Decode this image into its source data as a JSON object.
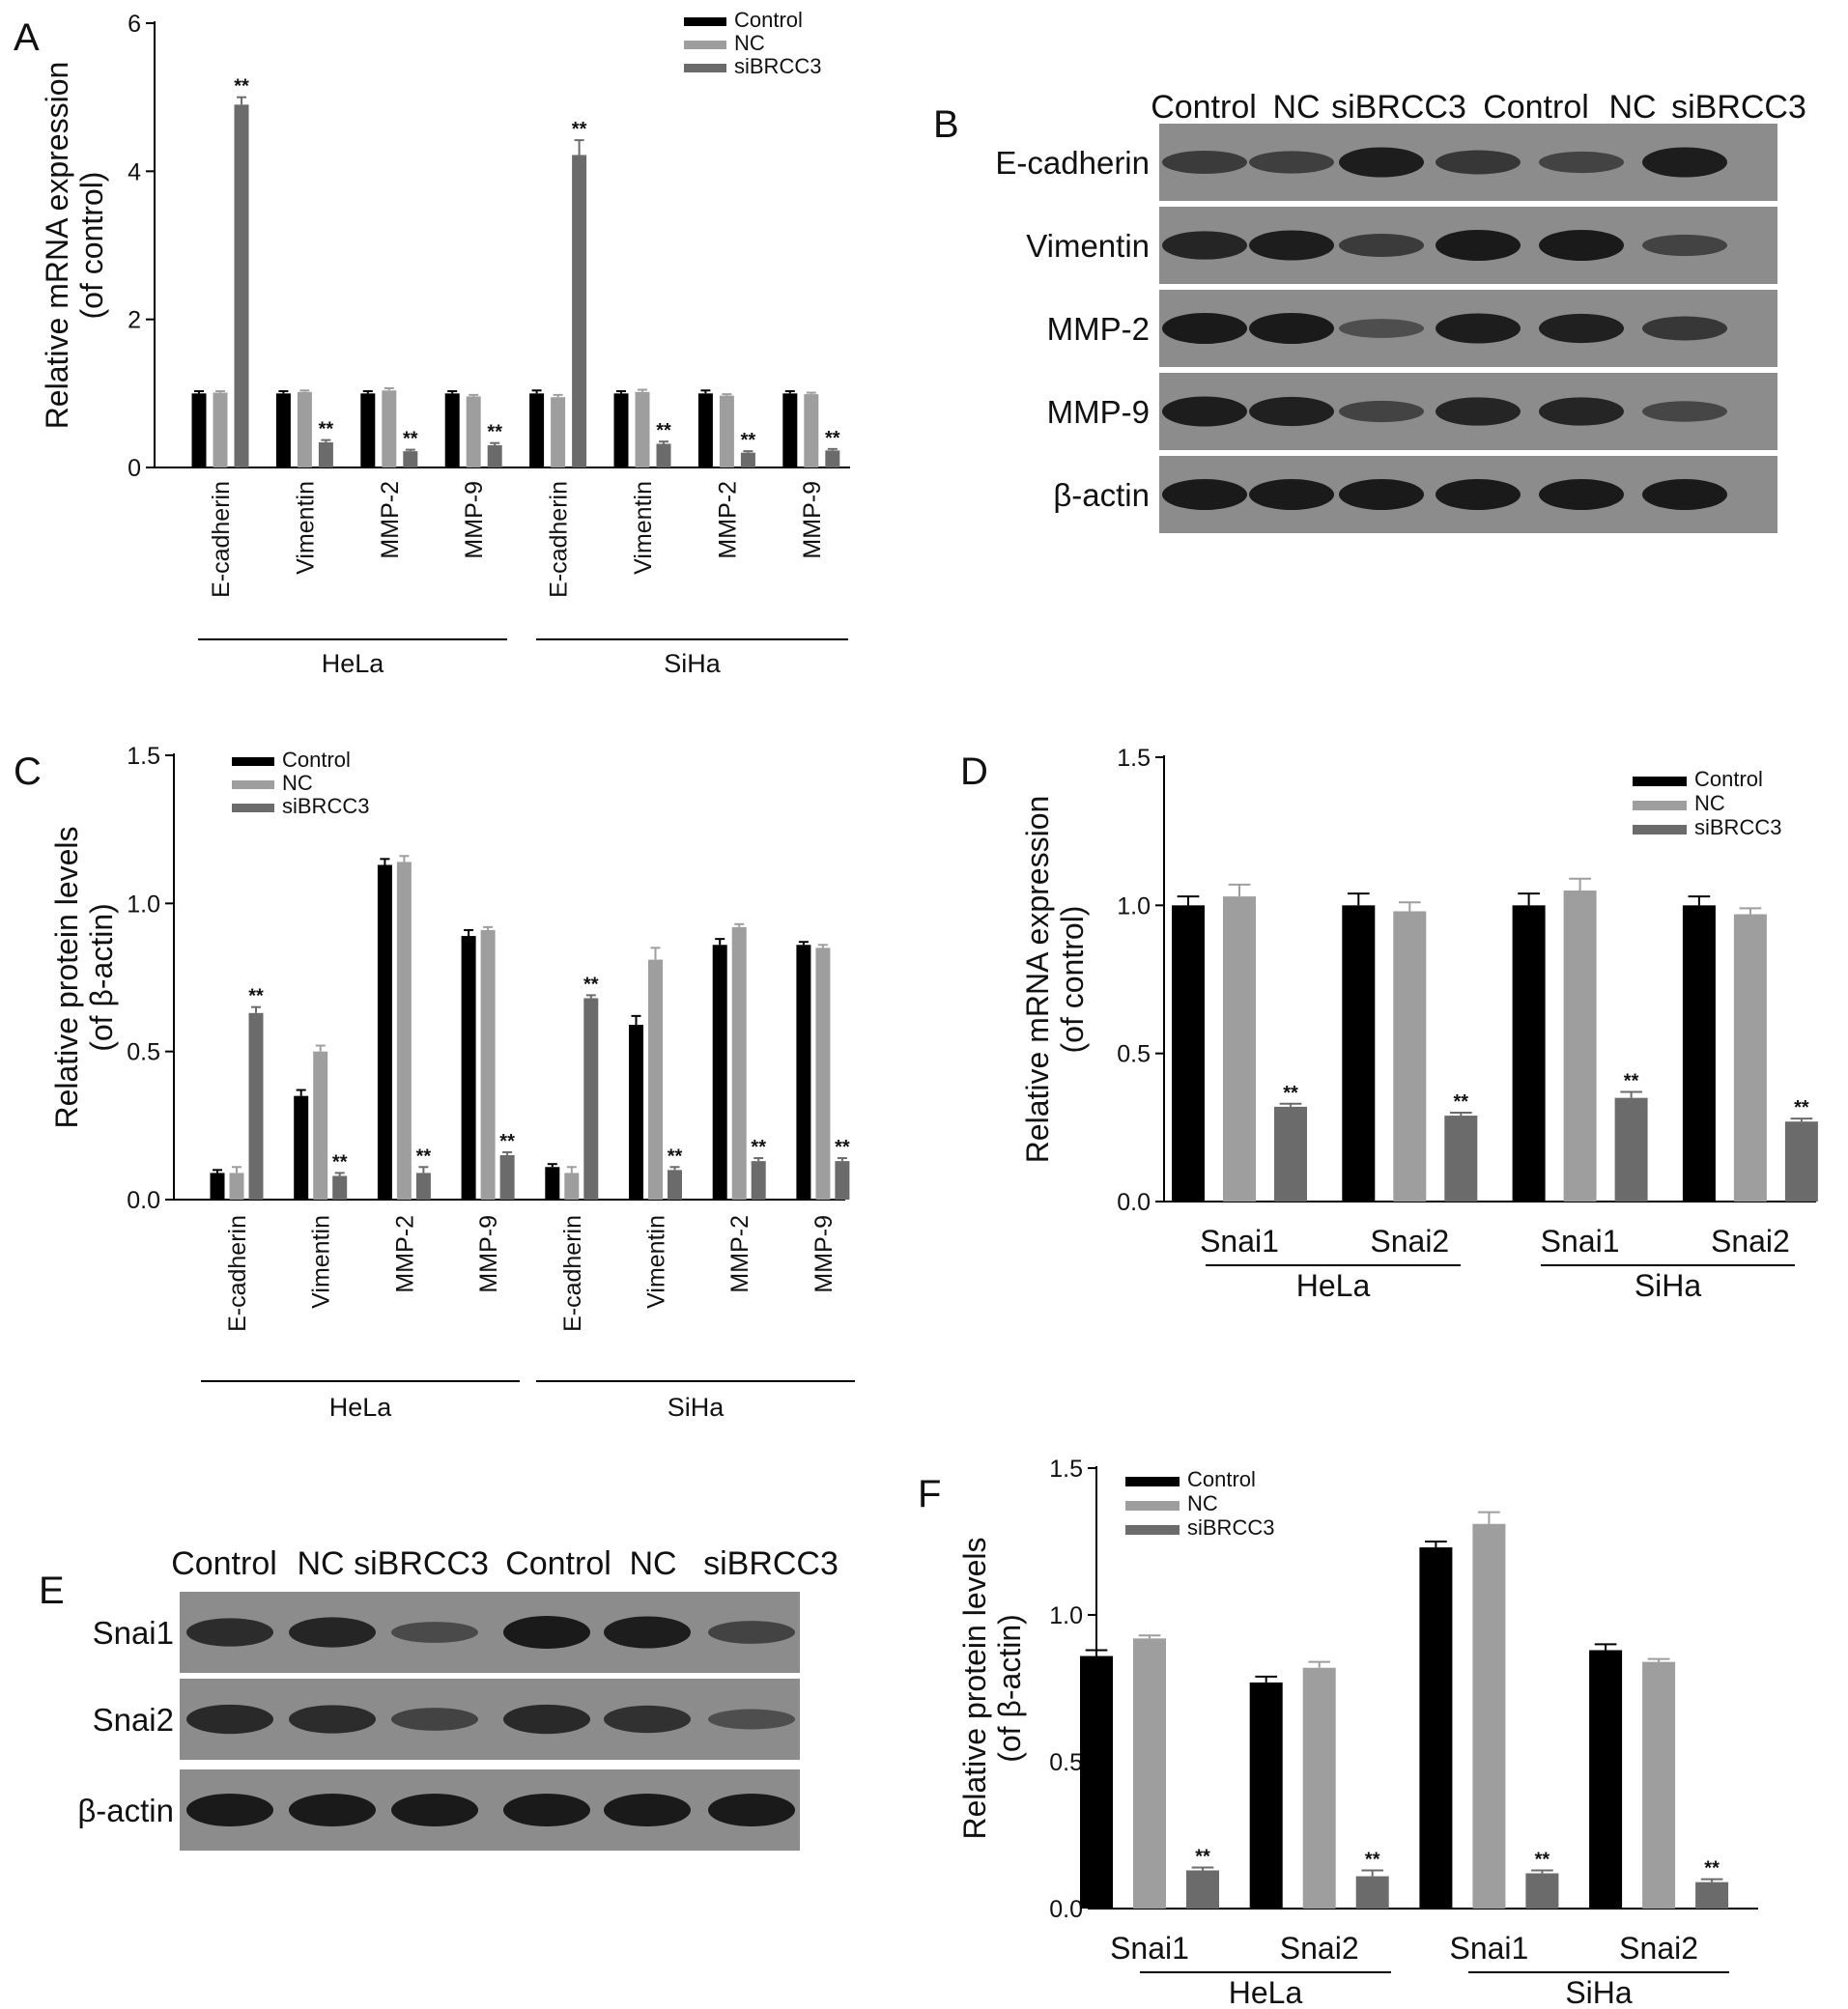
{
  "panels": {
    "A": "A",
    "B": "B",
    "C": "C",
    "D": "D",
    "E": "E",
    "F": "F"
  },
  "colors": {
    "Control": "#000000",
    "NC": "#9e9e9e",
    "siBRCC3": "#6b6b6b",
    "blot_background": "#8c8c8c",
    "band": "#1a1a1a"
  },
  "significance_marker": "**",
  "chart_data": [
    {
      "panel": "A",
      "type": "bar",
      "ylabel": "Relative mRNA expression (of control)",
      "ylabel_lines": [
        "Relative mRNA expression",
        "(of control)"
      ],
      "ylim": [
        0,
        6
      ],
      "yticks": [
        "0",
        "2",
        "4",
        "6"
      ],
      "groups": [
        "HeLa",
        "SiHa"
      ],
      "categories": [
        "E-cadherin",
        "Vimentin",
        "MMP-2",
        "MMP-9",
        "E-cadherin",
        "Vimentin",
        "MMP-2",
        "MMP-9"
      ],
      "legend": [
        "Control",
        "NC",
        "siBRCC3"
      ],
      "legend_position": "top-right",
      "series": [
        {
          "name": "Control",
          "values": [
            1.0,
            1.0,
            1.0,
            1.0,
            1.0,
            1.0,
            1.0,
            1.0
          ],
          "errors": [
            0.03,
            0.03,
            0.03,
            0.03,
            0.04,
            0.03,
            0.04,
            0.03
          ]
        },
        {
          "name": "NC",
          "values": [
            1.01,
            1.02,
            1.04,
            0.96,
            0.95,
            1.02,
            0.97,
            0.99
          ],
          "errors": [
            0.02,
            0.02,
            0.03,
            0.02,
            0.03,
            0.03,
            0.02,
            0.02
          ]
        },
        {
          "name": "siBRCC3",
          "values": [
            4.9,
            0.34,
            0.22,
            0.3,
            4.22,
            0.32,
            0.2,
            0.23
          ],
          "errors": [
            0.1,
            0.03,
            0.02,
            0.03,
            0.2,
            0.03,
            0.02,
            0.02
          ]
        }
      ],
      "significant": [
        [
          false,
          false,
          true,
          true,
          true,
          true,
          true,
          true,
          true,
          true,
          true,
          true,
          true,
          true,
          true,
          true
        ]
      ]
    },
    {
      "panel": "C",
      "type": "bar",
      "ylabel": "Relative protein levels (of β-actin)",
      "ylabel_lines": [
        "Relative protein levels",
        "(of β-actin)"
      ],
      "ylim": [
        0,
        1.5
      ],
      "yticks": [
        "0.0",
        "0.5",
        "1.0",
        "1.5"
      ],
      "groups": [
        "HeLa",
        "SiHa"
      ],
      "categories": [
        "E-cadherin",
        "Vimentin",
        "MMP-2",
        "MMP-9",
        "E-cadherin",
        "Vimentin",
        "MMP-2",
        "MMP-9"
      ],
      "legend": [
        "Control",
        "NC",
        "siBRCC3"
      ],
      "legend_position": "top-left",
      "series": [
        {
          "name": "Control",
          "values": [
            0.09,
            0.35,
            1.13,
            0.89,
            0.11,
            0.59,
            0.86,
            0.86
          ],
          "errors": [
            0.01,
            0.02,
            0.02,
            0.02,
            0.01,
            0.03,
            0.02,
            0.01
          ]
        },
        {
          "name": "NC",
          "values": [
            0.09,
            0.5,
            1.14,
            0.91,
            0.09,
            0.81,
            0.92,
            0.85
          ],
          "errors": [
            0.02,
            0.02,
            0.02,
            0.01,
            0.02,
            0.04,
            0.01,
            0.01
          ]
        },
        {
          "name": "siBRCC3",
          "values": [
            0.63,
            0.08,
            0.09,
            0.15,
            0.68,
            0.1,
            0.13,
            0.13
          ],
          "errors": [
            0.02,
            0.01,
            0.02,
            0.01,
            0.01,
            0.01,
            0.01,
            0.01
          ]
        }
      ]
    },
    {
      "panel": "D",
      "type": "bar",
      "ylabel": "Relative mRNA expression (of control)",
      "ylabel_lines": [
        "Relative mRNA expression",
        "(of control)"
      ],
      "ylim": [
        0,
        1.5
      ],
      "yticks": [
        "0.0",
        "0.5",
        "1.0",
        "1.5"
      ],
      "groups": [
        "HeLa",
        "SiHa"
      ],
      "categories": [
        "Snai1",
        "Snai2",
        "Snai1",
        "Snai2"
      ],
      "legend": [
        "Control",
        "NC",
        "siBRCC3"
      ],
      "legend_position": "top-right",
      "series": [
        {
          "name": "Control",
          "values": [
            1.0,
            1.0,
            1.0,
            1.0
          ],
          "errors": [
            0.03,
            0.04,
            0.04,
            0.03
          ]
        },
        {
          "name": "NC",
          "values": [
            1.03,
            0.98,
            1.05,
            0.97
          ],
          "errors": [
            0.04,
            0.03,
            0.04,
            0.02
          ]
        },
        {
          "name": "siBRCC3",
          "values": [
            0.32,
            0.29,
            0.35,
            0.27
          ],
          "errors": [
            0.01,
            0.01,
            0.02,
            0.01
          ]
        }
      ]
    },
    {
      "panel": "F",
      "type": "bar",
      "ylabel": "Relative protein levels (of β-actin)",
      "ylabel_lines": [
        "Relative protein levels",
        "(of β-actin)"
      ],
      "ylim": [
        0,
        1.5
      ],
      "yticks": [
        "0.0",
        "0.5",
        "1.0",
        "1.5"
      ],
      "groups": [
        "HeLa",
        "SiHa"
      ],
      "categories": [
        "Snai1",
        "Snai2",
        "Snai1",
        "Snai2"
      ],
      "legend": [
        "Control",
        "NC",
        "siBRCC3"
      ],
      "legend_position": "top-left",
      "series": [
        {
          "name": "Control",
          "values": [
            0.86,
            0.77,
            1.23,
            0.88
          ],
          "errors": [
            0.02,
            0.02,
            0.02,
            0.02
          ]
        },
        {
          "name": "NC",
          "values": [
            0.92,
            0.82,
            1.31,
            0.84
          ],
          "errors": [
            0.01,
            0.02,
            0.04,
            0.01
          ]
        },
        {
          "name": "siBRCC3",
          "values": [
            0.13,
            0.11,
            0.12,
            0.09
          ],
          "errors": [
            0.01,
            0.02,
            0.01,
            0.01
          ]
        }
      ]
    }
  ],
  "blots": {
    "B": {
      "lanes": [
        "Control",
        "NC",
        "siBRCC3",
        "Control",
        "NC",
        "siBRCC3"
      ],
      "rows": [
        {
          "label": "E-cadherin",
          "intensity": [
            0.55,
            0.5,
            0.95,
            0.6,
            0.45,
            0.95
          ]
        },
        {
          "label": "Vimentin",
          "intensity": [
            0.85,
            0.95,
            0.55,
            1.0,
            1.0,
            0.45
          ]
        },
        {
          "label": "MMP-2",
          "intensity": [
            1.0,
            1.0,
            0.3,
            0.95,
            0.9,
            0.6
          ]
        },
        {
          "label": "MMP-9",
          "intensity": [
            0.95,
            0.9,
            0.45,
            0.85,
            0.85,
            0.4
          ]
        },
        {
          "label": "β-actin",
          "intensity": [
            1.0,
            1.0,
            1.0,
            1.0,
            1.0,
            1.0
          ]
        }
      ]
    },
    "E": {
      "lanes": [
        "Control",
        "NC",
        "siBRCC3",
        "Control",
        "NC",
        "siBRCC3"
      ],
      "rows": [
        {
          "label": "Snai1",
          "intensity": [
            0.75,
            0.85,
            0.35,
            1.0,
            0.95,
            0.45
          ]
        },
        {
          "label": "Snai2",
          "intensity": [
            0.8,
            0.75,
            0.45,
            0.8,
            0.7,
            0.3
          ]
        },
        {
          "label": "β-actin",
          "intensity": [
            1.0,
            1.0,
            1.0,
            1.0,
            1.0,
            1.0
          ]
        }
      ]
    }
  }
}
